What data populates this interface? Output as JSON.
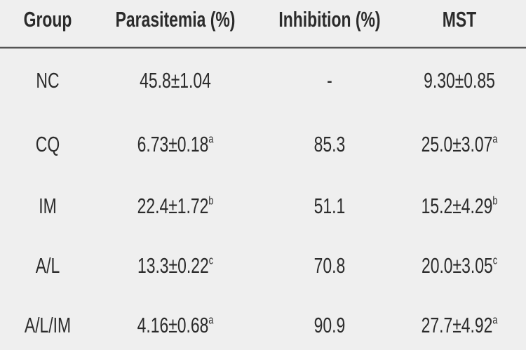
{
  "table": {
    "headers": [
      "Group",
      "Parasitemia (%)",
      "Inhibition (%)",
      "MST"
    ],
    "rows": [
      [
        "NC",
        "45.8±1.04",
        "-",
        "9.30±0.85"
      ],
      [
        "CQ",
        {
          "text": "6.73±0.18",
          "sup": "a"
        },
        "85.3",
        {
          "text": "25.0±3.07",
          "sup": "a"
        }
      ],
      [
        "IM",
        {
          "text": "22.4±1.72",
          "sup": "b"
        },
        "51.1",
        {
          "text": "15.2±4.29",
          "sup": "b"
        }
      ],
      [
        "A/L",
        {
          "text": "13.3±0.22",
          "sup": "c"
        },
        "70.8",
        {
          "text": "20.0±3.05",
          "sup": "c"
        }
      ],
      [
        "A/L/IM",
        {
          "text": "4.16±0.68",
          "sup": "a"
        },
        "90.9",
        {
          "text": "27.7±4.92",
          "sup": "a"
        }
      ]
    ]
  }
}
